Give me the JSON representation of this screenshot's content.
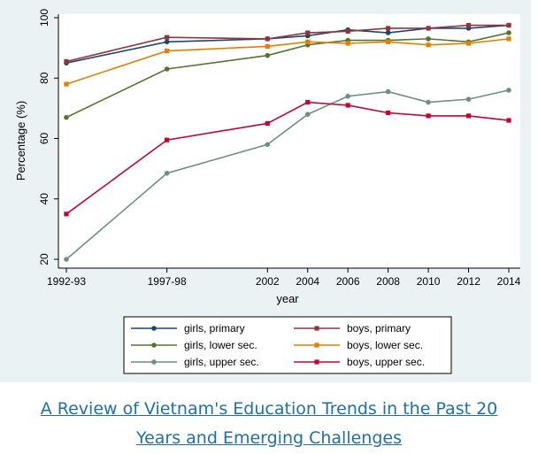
{
  "chart_data": {
    "type": "line",
    "xlabel": "year",
    "ylabel": "Percentage (%)",
    "ylim": [
      20,
      100
    ],
    "yticks": [
      20,
      40,
      60,
      80,
      100
    ],
    "x": [
      1992,
      1997,
      2002,
      2004,
      2006,
      2008,
      2010,
      2012,
      2014
    ],
    "xticks": [
      "1992-93",
      "1997-98",
      "2002",
      "2004",
      "2006",
      "2008",
      "2010",
      "2012",
      "2014"
    ],
    "grid": false,
    "legend_position": "bottom",
    "series": [
      {
        "name": "girls, primary",
        "color": "#1a476f",
        "values": [
          85,
          92,
          93,
          94,
          96,
          95,
          96.5,
          96.5,
          97.5
        ]
      },
      {
        "name": "boys, primary",
        "color": "#90353b",
        "values": [
          85.5,
          93.5,
          93,
          95,
          95.5,
          96.5,
          96.5,
          97.5,
          97.5
        ]
      },
      {
        "name": "girls, lower sec.",
        "color": "#55752f",
        "values": [
          67,
          83,
          87.5,
          91,
          92.5,
          92.5,
          93,
          92,
          95
        ]
      },
      {
        "name": "boys, lower sec.",
        "color": "#e37e00",
        "values": [
          78,
          89,
          90.5,
          92,
          91.5,
          92,
          91,
          91.5,
          93
        ]
      },
      {
        "name": "girls, upper sec.",
        "color": "#6e8e84",
        "values": [
          20,
          48.5,
          58,
          68,
          74,
          75.5,
          72,
          73,
          76
        ]
      },
      {
        "name": "boys, upper sec.",
        "color": "#c10534",
        "values": [
          35,
          59.5,
          65,
          72,
          71,
          68.5,
          67.5,
          67.5,
          66
        ]
      }
    ]
  },
  "caption": {
    "line1": "A Review of Vietnam's Education Trends in the Past 20",
    "line2": "Years and Emerging Challenges"
  }
}
